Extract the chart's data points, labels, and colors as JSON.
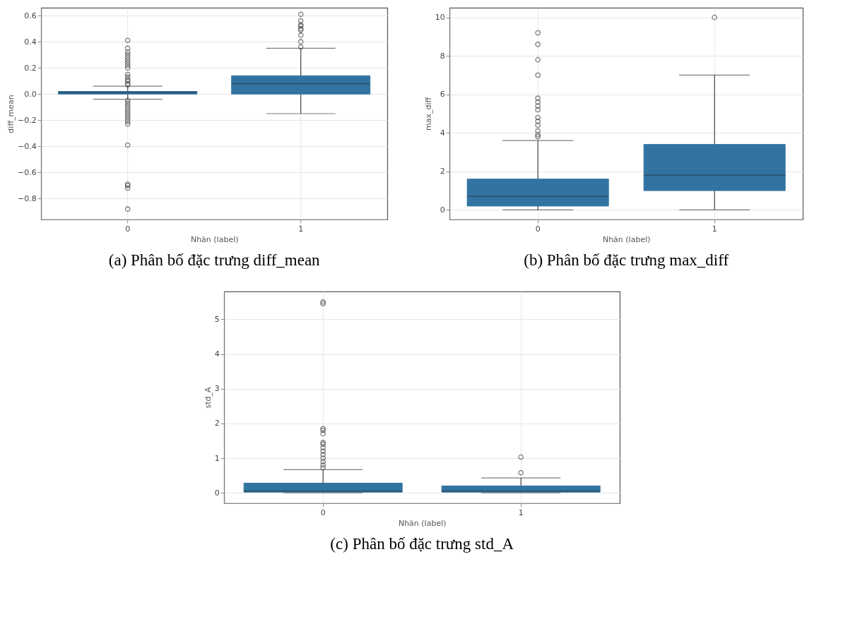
{
  "chart_data": [
    {
      "type": "box",
      "title": "(a) Phân bố đặc trưng diff_mean",
      "xlabel": "Nhãn (label)",
      "ylabel": "diff_mean",
      "categories": [
        "0",
        "1"
      ],
      "color": "#3274a1",
      "grid": true,
      "ylim": [
        -0.96,
        0.66
      ],
      "yticks": [
        {
          "value": -0.8,
          "label": "−0.8"
        },
        {
          "value": -0.6,
          "label": "−0.6"
        },
        {
          "value": -0.4,
          "label": "−0.4"
        },
        {
          "value": -0.2,
          "label": "−0.2"
        },
        {
          "value": 0,
          "label": "0.0"
        },
        0.2,
        0.4,
        0.6
      ],
      "boxes": [
        {
          "low": -0.04,
          "q1": 0.0,
          "median": 0.01,
          "q3": 0.02,
          "high": 0.06,
          "outliers": [
            0.41,
            0.35,
            0.32,
            0.3,
            0.28,
            0.26,
            0.24,
            0.22,
            0.2,
            0.15,
            0.13,
            0.11,
            0.1,
            0.08,
            0.07,
            -0.05,
            -0.07,
            -0.09,
            -0.11,
            -0.13,
            -0.15,
            -0.17,
            -0.19,
            -0.21,
            -0.23,
            -0.39,
            -0.69,
            -0.7,
            -0.72,
            -0.88
          ]
        },
        {
          "low": -0.15,
          "q1": 0.0,
          "median": 0.08,
          "q3": 0.14,
          "high": 0.35,
          "outliers": [
            0.36,
            0.4,
            0.45,
            0.49,
            0.5,
            0.52,
            0.53,
            0.56,
            0.61
          ]
        }
      ]
    },
    {
      "type": "box",
      "title": "(b) Phân bố đặc trưng max_diff",
      "xlabel": "Nhãn (label)",
      "ylabel": "max_diff",
      "categories": [
        "0",
        "1"
      ],
      "color": "#3274a1",
      "grid": true,
      "ylim": [
        -0.5,
        10.5
      ],
      "yticks": [
        0,
        2,
        4,
        6,
        8,
        10
      ],
      "boxes": [
        {
          "low": 0,
          "q1": 0.2,
          "median": 0.7,
          "q3": 1.6,
          "high": 3.6,
          "outliers": [
            3.8,
            3.9,
            4.1,
            4.4,
            4.6,
            4.8,
            5.2,
            5.4,
            5.6,
            5.8,
            7.0,
            7.8,
            8.6,
            9.2
          ]
        },
        {
          "low": 0,
          "q1": 1.0,
          "median": 1.8,
          "q3": 3.4,
          "high": 7.0,
          "outliers": [
            10.0
          ]
        }
      ]
    },
    {
      "type": "box",
      "title": "(c) Phân bố đặc trưng std_A",
      "xlabel": "Nhãn (label)",
      "ylabel": "std_A",
      "categories": [
        "0",
        "1"
      ],
      "color": "#3274a1",
      "grid": true,
      "ylim": [
        -0.3,
        5.8
      ],
      "yticks": [
        0,
        1,
        2,
        3,
        4,
        5
      ],
      "boxes": [
        {
          "low": 0,
          "q1": 0.02,
          "median": 0.05,
          "q3": 0.28,
          "high": 0.67,
          "outliers": [
            0.72,
            0.8,
            0.9,
            1.0,
            1.1,
            1.2,
            1.3,
            1.4,
            1.45,
            1.7,
            1.8,
            1.85,
            5.45,
            5.5
          ]
        },
        {
          "low": 0,
          "q1": 0.02,
          "median": 0.05,
          "q3": 0.2,
          "high": 0.43,
          "outliers": [
            0.58,
            1.03
          ]
        }
      ]
    }
  ]
}
